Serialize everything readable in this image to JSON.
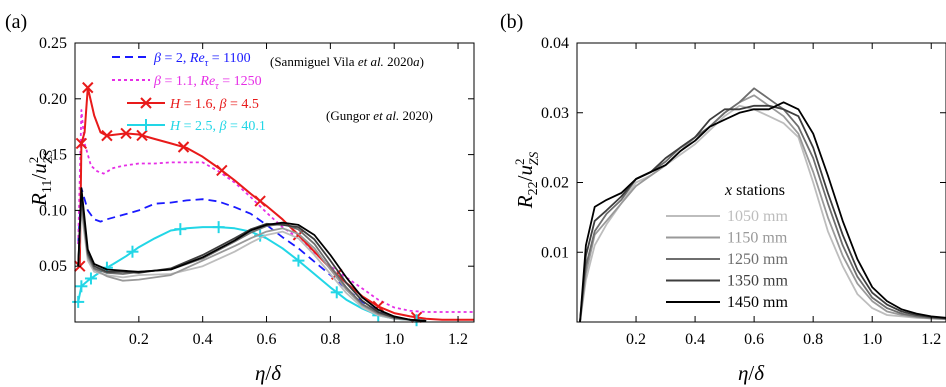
{
  "chart_data": [
    {
      "type": "line",
      "panel_label": "(a)",
      "xlabel": "η/δ",
      "ylabel": "R11/u²ZS",
      "xlim": [
        0,
        1.25
      ],
      "ylim": [
        0,
        0.25
      ],
      "x_ticks": [
        "0.2",
        "0.4",
        "0.6",
        "0.8",
        "1.0",
        "1.2"
      ],
      "y_ticks": [
        "0.05",
        "0.10",
        "0.15",
        "0.20",
        "0.25"
      ],
      "legend_position": "top-right",
      "series": [
        {
          "name": "β = 2, Reτ = 1100",
          "legend": {
            "sym": "β",
            "a": " = 2, ",
            "re": "Re",
            "sub": "τ",
            "b": " = 1100"
          },
          "group": "(Sanmiguel Vila et al. 2020a)",
          "color": "#1a1aff",
          "dash": "8,5",
          "marker": "none",
          "x": [
            0.01,
            0.02,
            0.04,
            0.06,
            0.08,
            0.1,
            0.15,
            0.2,
            0.25,
            0.3,
            0.35,
            0.4,
            0.45,
            0.5,
            0.55,
            0.6,
            0.65,
            0.7,
            0.75,
            0.8,
            0.85,
            0.9,
            0.95,
            1.0,
            1.05
          ],
          "y": [
            0.07,
            0.12,
            0.1,
            0.092,
            0.09,
            0.092,
            0.096,
            0.1,
            0.106,
            0.107,
            0.109,
            0.11,
            0.108,
            0.103,
            0.097,
            0.087,
            0.076,
            0.066,
            0.054,
            0.042,
            0.03,
            0.018,
            0.01,
            0.004,
            0.002
          ]
        },
        {
          "name": "β = 1.1, Reτ = 1250",
          "legend": {
            "sym": "β",
            "a": " = 1.1, ",
            "re": "Re",
            "sub": "τ",
            "b": " = 1250"
          },
          "group": "",
          "color": "#e62ee6",
          "dash": "3,3",
          "marker": "none",
          "x": [
            0.01,
            0.02,
            0.03,
            0.05,
            0.07,
            0.09,
            0.12,
            0.15,
            0.2,
            0.25,
            0.3,
            0.35,
            0.4,
            0.45,
            0.5,
            0.55,
            0.6,
            0.65,
            0.7,
            0.75,
            0.8,
            0.85,
            0.9,
            0.95,
            1.0,
            1.05,
            1.1,
            1.15,
            1.2,
            1.25
          ],
          "y": [
            0.07,
            0.19,
            0.16,
            0.14,
            0.135,
            0.133,
            0.138,
            0.14,
            0.142,
            0.142,
            0.143,
            0.143,
            0.143,
            0.135,
            0.125,
            0.112,
            0.098,
            0.085,
            0.075,
            0.062,
            0.05,
            0.04,
            0.03,
            0.02,
            0.013,
            0.01,
            0.009,
            0.009,
            0.009,
            0.009
          ]
        },
        {
          "name": "H = 1.6, β = 4.5",
          "legend": {
            "sym": "H",
            "a": " = 1.6, ",
            "re": "β",
            "sub": "",
            "b": " = 4.5"
          },
          "group": "(Gungor et al. 2020)",
          "color": "#e81a1a",
          "dash": "",
          "marker": "x",
          "x": [
            0.015,
            0.02,
            0.03,
            0.04,
            0.06,
            0.08,
            0.1,
            0.13,
            0.16,
            0.2,
            0.25,
            0.3,
            0.35,
            0.4,
            0.45,
            0.5,
            0.55,
            0.6,
            0.65,
            0.7,
            0.75,
            0.8,
            0.85,
            0.9,
            0.95,
            1.0,
            1.05,
            1.1,
            1.15,
            1.2,
            1.25
          ],
          "y": [
            0.05,
            0.16,
            0.17,
            0.21,
            0.185,
            0.17,
            0.167,
            0.168,
            0.169,
            0.168,
            0.164,
            0.16,
            0.156,
            0.148,
            0.138,
            0.127,
            0.115,
            0.104,
            0.092,
            0.078,
            0.063,
            0.048,
            0.035,
            0.023,
            0.014,
            0.008,
            0.005,
            0.003,
            0.002,
            0.002,
            0.002
          ],
          "marker_x": [
            0.015,
            0.02,
            0.04,
            0.1,
            0.16,
            0.21,
            0.34,
            0.46,
            0.58,
            0.7,
            0.82,
            0.95,
            1.07
          ]
        },
        {
          "name": "H = 2.5, β = 40.1",
          "legend": {
            "sym": "H",
            "a": " = 2.5, ",
            "re": "β",
            "sub": "",
            "b": " = 40.1"
          },
          "group": "",
          "color": "#22d6e6",
          "dash": "",
          "marker": "+",
          "x": [
            0.01,
            0.02,
            0.04,
            0.06,
            0.09,
            0.12,
            0.16,
            0.2,
            0.25,
            0.3,
            0.35,
            0.4,
            0.45,
            0.5,
            0.55,
            0.6,
            0.65,
            0.7,
            0.75,
            0.8,
            0.85,
            0.9,
            0.95,
            1.0,
            1.05,
            1.1
          ],
          "y": [
            0.018,
            0.032,
            0.037,
            0.041,
            0.047,
            0.052,
            0.059,
            0.067,
            0.075,
            0.082,
            0.084,
            0.085,
            0.085,
            0.084,
            0.081,
            0.075,
            0.066,
            0.055,
            0.043,
            0.031,
            0.02,
            0.012,
            0.006,
            0.003,
            0.002,
            0.001
          ],
          "marker_x": [
            0.01,
            0.02,
            0.05,
            0.1,
            0.18,
            0.33,
            0.45,
            0.58,
            0.7,
            0.82,
            0.95,
            1.07
          ]
        },
        {
          "name": "1050 mm",
          "group": "",
          "color": "#bdbdbd",
          "dash": "",
          "marker": "none",
          "x": [
            0.01,
            0.02,
            0.04,
            0.06,
            0.1,
            0.15,
            0.2,
            0.3,
            0.4,
            0.5,
            0.55,
            0.6,
            0.65,
            0.7,
            0.75,
            0.8,
            0.85,
            0.9,
            0.95,
            1.0,
            1.05,
            1.1
          ],
          "y": [
            0.05,
            0.1,
            0.055,
            0.045,
            0.042,
            0.04,
            0.042,
            0.043,
            0.05,
            0.063,
            0.071,
            0.078,
            0.081,
            0.075,
            0.06,
            0.043,
            0.026,
            0.013,
            0.006,
            0.003,
            0.002,
            0.001
          ]
        },
        {
          "name": "1150 mm",
          "group": "",
          "color": "#999999",
          "dash": "",
          "marker": "none",
          "x": [
            0.01,
            0.02,
            0.04,
            0.06,
            0.1,
            0.15,
            0.2,
            0.3,
            0.4,
            0.5,
            0.55,
            0.6,
            0.65,
            0.7,
            0.75,
            0.8,
            0.85,
            0.9,
            0.95,
            1.0,
            1.05,
            1.1
          ],
          "y": [
            0.05,
            0.105,
            0.058,
            0.047,
            0.041,
            0.037,
            0.038,
            0.042,
            0.055,
            0.068,
            0.075,
            0.081,
            0.084,
            0.079,
            0.066,
            0.047,
            0.029,
            0.015,
            0.007,
            0.003,
            0.002,
            0.001
          ]
        },
        {
          "name": "1250 mm",
          "group": "",
          "color": "#6e6e6e",
          "dash": "",
          "marker": "none",
          "x": [
            0.01,
            0.02,
            0.04,
            0.06,
            0.1,
            0.15,
            0.2,
            0.3,
            0.4,
            0.5,
            0.55,
            0.6,
            0.65,
            0.7,
            0.75,
            0.8,
            0.85,
            0.9,
            0.95,
            1.0,
            1.05,
            1.1
          ],
          "y": [
            0.05,
            0.11,
            0.06,
            0.048,
            0.044,
            0.043,
            0.045,
            0.047,
            0.057,
            0.072,
            0.08,
            0.086,
            0.088,
            0.083,
            0.07,
            0.05,
            0.031,
            0.016,
            0.008,
            0.004,
            0.002,
            0.001
          ]
        },
        {
          "name": "1350 mm",
          "group": "",
          "color": "#3d3d3d",
          "dash": "",
          "marker": "none",
          "x": [
            0.01,
            0.02,
            0.04,
            0.06,
            0.1,
            0.15,
            0.2,
            0.3,
            0.4,
            0.5,
            0.55,
            0.6,
            0.65,
            0.7,
            0.75,
            0.8,
            0.85,
            0.9,
            0.95,
            1.0,
            1.05,
            1.1
          ],
          "y": [
            0.05,
            0.115,
            0.062,
            0.05,
            0.045,
            0.045,
            0.044,
            0.048,
            0.06,
            0.075,
            0.083,
            0.088,
            0.087,
            0.085,
            0.074,
            0.055,
            0.035,
            0.019,
            0.009,
            0.004,
            0.002,
            0.001
          ]
        },
        {
          "name": "1450 mm",
          "group": "",
          "color": "#000000",
          "dash": "",
          "marker": "none",
          "x": [
            0.01,
            0.02,
            0.04,
            0.06,
            0.1,
            0.15,
            0.2,
            0.3,
            0.4,
            0.5,
            0.55,
            0.6,
            0.65,
            0.7,
            0.75,
            0.8,
            0.85,
            0.9,
            0.95,
            1.0,
            1.05,
            1.1
          ],
          "y": [
            0.05,
            0.12,
            0.065,
            0.052,
            0.047,
            0.046,
            0.045,
            0.047,
            0.058,
            0.073,
            0.082,
            0.087,
            0.089,
            0.087,
            0.078,
            0.06,
            0.04,
            0.022,
            0.011,
            0.005,
            0.002,
            0.001
          ]
        }
      ]
    },
    {
      "type": "line",
      "panel_label": "(b)",
      "xlabel": "η/δ",
      "ylabel": "R22/u²ZS",
      "xlim": [
        0,
        1.25
      ],
      "ylim": [
        0,
        0.04
      ],
      "x_ticks": [
        "0.2",
        "0.4",
        "0.6",
        "0.8",
        "1.0",
        "1.2"
      ],
      "y_ticks": [
        "0.01",
        "0.02",
        "0.03",
        "0.04"
      ],
      "legend_title": "x stations",
      "legend_position": "bottom-center",
      "series": [
        {
          "name": "1050 mm",
          "color": "#bdbdbd",
          "x": [
            0.01,
            0.03,
            0.06,
            0.1,
            0.15,
            0.2,
            0.25,
            0.3,
            0.35,
            0.4,
            0.45,
            0.5,
            0.55,
            0.6,
            0.65,
            0.7,
            0.75,
            0.8,
            0.85,
            0.9,
            0.95,
            1.0,
            1.05,
            1.1,
            1.15,
            1.2,
            1.25
          ],
          "y": [
            0.0,
            0.006,
            0.011,
            0.014,
            0.017,
            0.02,
            0.021,
            0.0225,
            0.024,
            0.0255,
            0.0275,
            0.0295,
            0.031,
            0.0305,
            0.0295,
            0.0285,
            0.0265,
            0.02,
            0.013,
            0.008,
            0.004,
            0.002,
            0.001,
            0.0008,
            0.0006,
            0.0005,
            0.0004
          ]
        },
        {
          "name": "1150 mm",
          "color": "#999999",
          "x": [
            0.01,
            0.03,
            0.06,
            0.1,
            0.15,
            0.2,
            0.25,
            0.3,
            0.35,
            0.4,
            0.45,
            0.5,
            0.55,
            0.6,
            0.65,
            0.7,
            0.75,
            0.8,
            0.85,
            0.9,
            0.95,
            1.0,
            1.05,
            1.1,
            1.15,
            1.2,
            1.25
          ],
          "y": [
            0.0,
            0.007,
            0.0125,
            0.0145,
            0.017,
            0.0195,
            0.021,
            0.0225,
            0.0245,
            0.0265,
            0.028,
            0.03,
            0.0315,
            0.0325,
            0.031,
            0.0295,
            0.027,
            0.0215,
            0.015,
            0.0095,
            0.0055,
            0.003,
            0.0015,
            0.001,
            0.0007,
            0.0005,
            0.0004
          ]
        },
        {
          "name": "1250 mm",
          "color": "#6e6e6e",
          "x": [
            0.01,
            0.03,
            0.06,
            0.1,
            0.15,
            0.2,
            0.25,
            0.3,
            0.35,
            0.4,
            0.45,
            0.5,
            0.55,
            0.6,
            0.65,
            0.7,
            0.75,
            0.8,
            0.85,
            0.9,
            0.95,
            1.0,
            1.05,
            1.1,
            1.15,
            1.2,
            1.25
          ],
          "y": [
            0.0,
            0.008,
            0.013,
            0.0155,
            0.0175,
            0.0205,
            0.0215,
            0.023,
            0.025,
            0.0265,
            0.028,
            0.03,
            0.0315,
            0.0335,
            0.032,
            0.0305,
            0.028,
            0.0235,
            0.017,
            0.011,
            0.0065,
            0.0035,
            0.002,
            0.0012,
            0.0008,
            0.0006,
            0.0005
          ]
        },
        {
          "name": "1350 mm",
          "color": "#3d3d3d",
          "x": [
            0.01,
            0.03,
            0.06,
            0.1,
            0.15,
            0.2,
            0.25,
            0.3,
            0.35,
            0.4,
            0.45,
            0.5,
            0.55,
            0.6,
            0.65,
            0.7,
            0.75,
            0.8,
            0.85,
            0.9,
            0.95,
            1.0,
            1.05,
            1.1,
            1.15,
            1.2,
            1.25
          ],
          "y": [
            0.0,
            0.0095,
            0.0145,
            0.016,
            0.018,
            0.0205,
            0.0215,
            0.0235,
            0.025,
            0.0265,
            0.029,
            0.0305,
            0.0305,
            0.031,
            0.031,
            0.0305,
            0.0295,
            0.025,
            0.0185,
            0.0125,
            0.0075,
            0.0042,
            0.0025,
            0.0015,
            0.001,
            0.0007,
            0.0005
          ]
        },
        {
          "name": "1450 mm",
          "color": "#000000",
          "x": [
            0.01,
            0.03,
            0.06,
            0.1,
            0.15,
            0.2,
            0.25,
            0.3,
            0.35,
            0.4,
            0.45,
            0.5,
            0.55,
            0.6,
            0.65,
            0.7,
            0.75,
            0.8,
            0.85,
            0.9,
            0.95,
            1.0,
            1.05,
            1.1,
            1.15,
            1.2,
            1.25
          ],
          "y": [
            0.0,
            0.011,
            0.0165,
            0.0175,
            0.0185,
            0.0205,
            0.0215,
            0.0225,
            0.0245,
            0.026,
            0.028,
            0.029,
            0.03,
            0.0305,
            0.0305,
            0.0315,
            0.0305,
            0.027,
            0.021,
            0.0145,
            0.009,
            0.005,
            0.003,
            0.0018,
            0.0012,
            0.0008,
            0.0006
          ]
        }
      ]
    }
  ]
}
